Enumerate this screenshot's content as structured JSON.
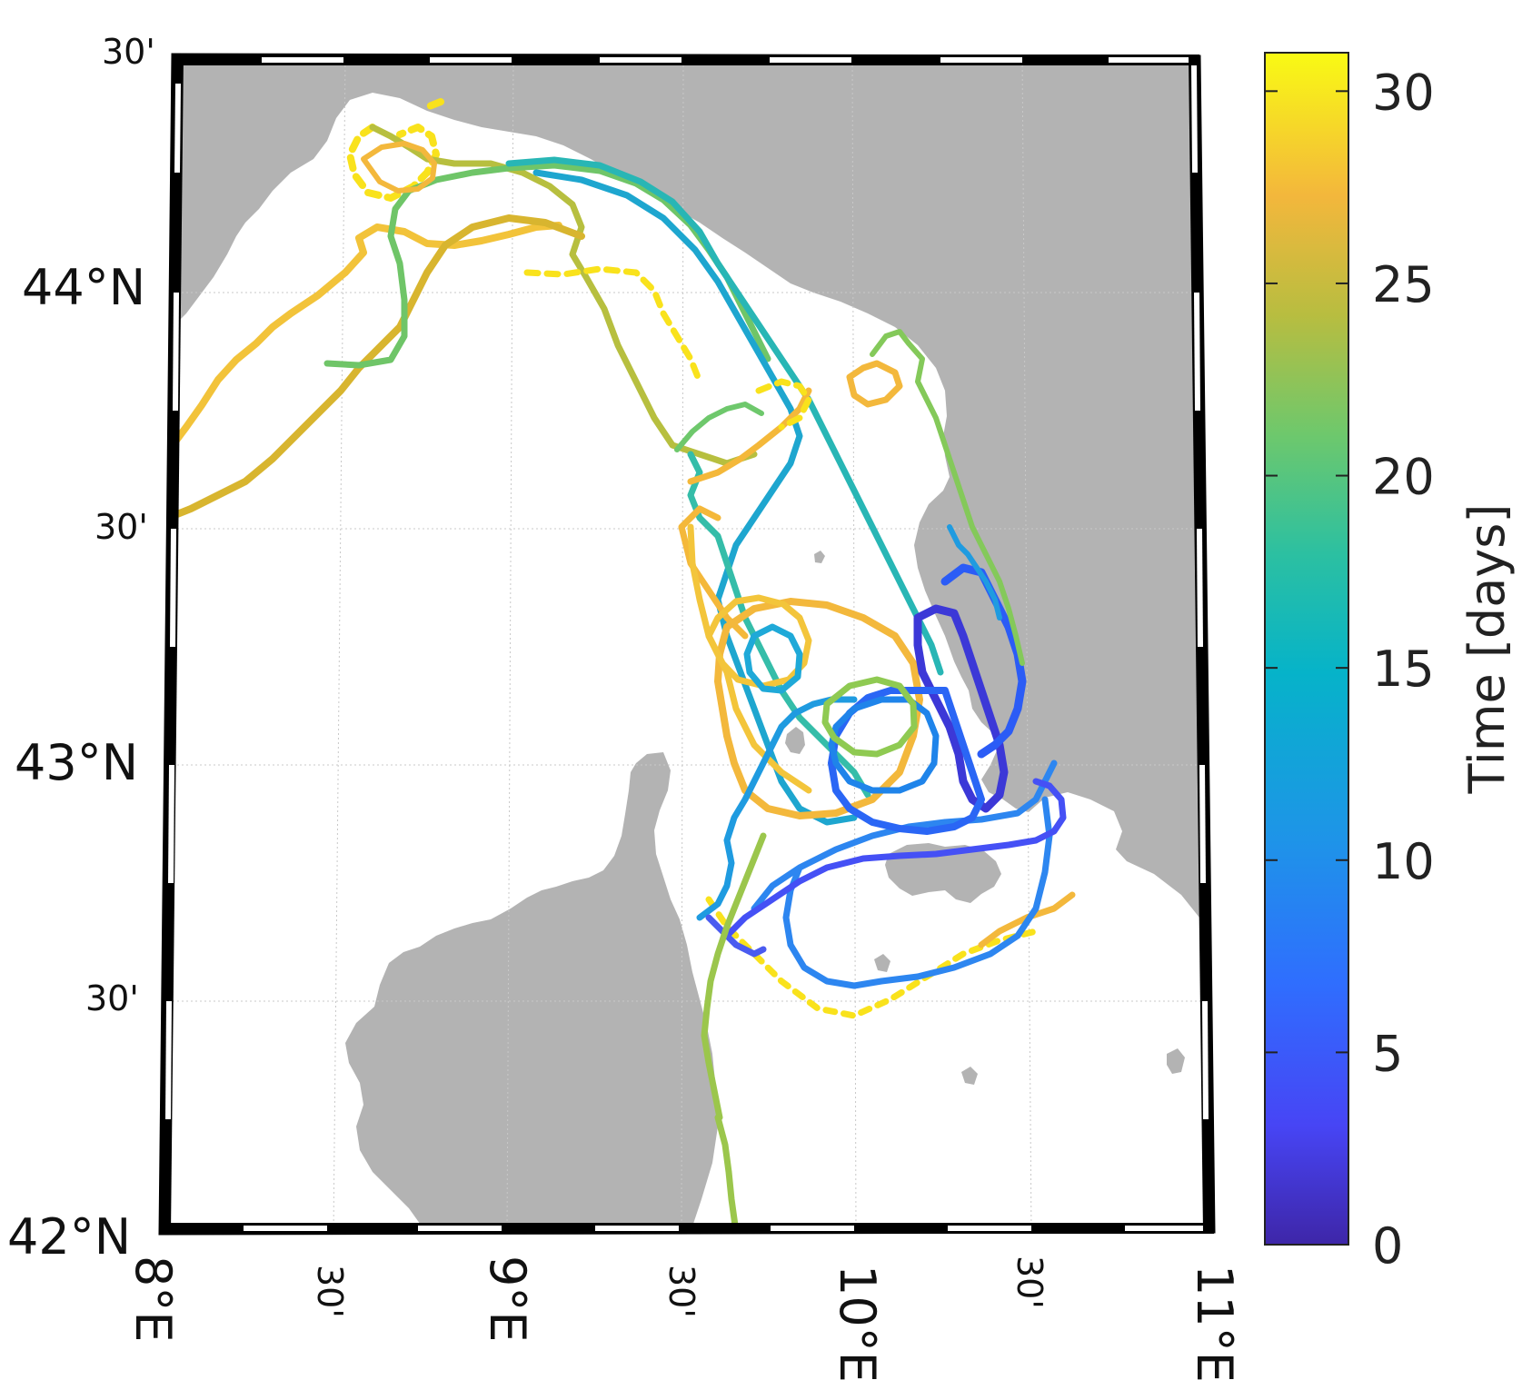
{
  "figure": {
    "colorbar_label": "Time [days]",
    "colorbar_ticks": [
      "0",
      "5",
      "10",
      "15",
      "20",
      "25",
      "30"
    ],
    "colorbar_tick_values": [
      0,
      5,
      10,
      15,
      20,
      25,
      30
    ],
    "colorbar_range": [
      0,
      31
    ],
    "lat_labels": {
      "lat42": "42°N",
      "lat42_30": "30'",
      "lat43": "43°N",
      "lat43_30": "30'",
      "lat44": "44°N",
      "lat44_30": "30'"
    },
    "lon_labels": {
      "lon8": "8°E",
      "lon8_30": "30'",
      "lon9": "9°E",
      "lon9_30": "30'",
      "lon10": "10°E",
      "lon10_30": "30'",
      "lon11": "11°E"
    },
    "extent": {
      "lon_min": 8,
      "lon_max": 11,
      "lat_min": 42,
      "lat_max": 44.5
    },
    "colors": {
      "land": "#b3b3b3",
      "sea": "#ffffff",
      "frame": "#000000",
      "grid": "#c8c8c8",
      "colormap": "parula"
    }
  }
}
